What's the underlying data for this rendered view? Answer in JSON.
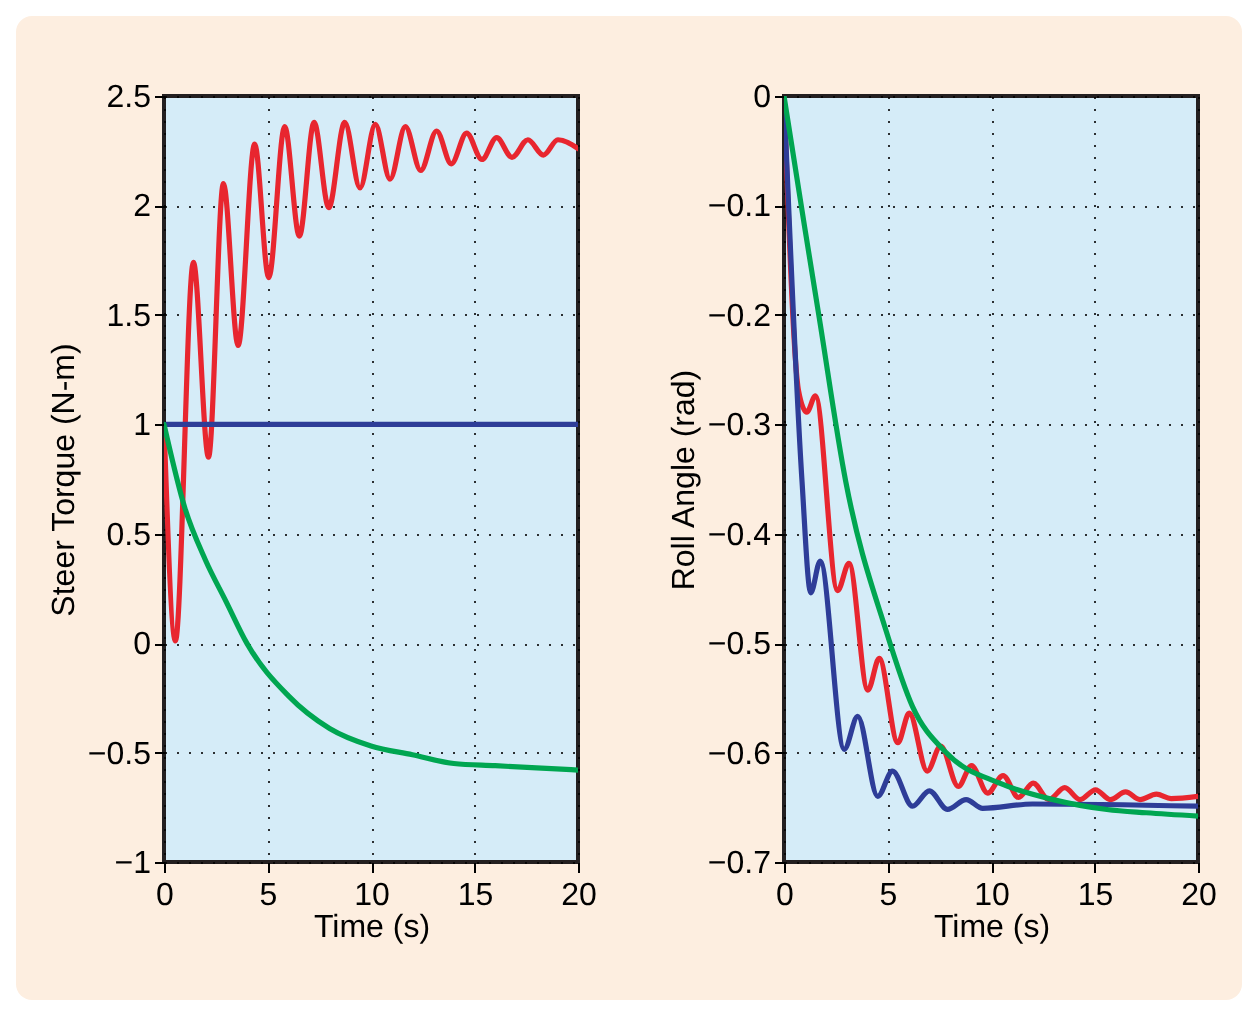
{
  "chart_data": [
    {
      "type": "line",
      "xlabel": "Time (s)",
      "ylabel": "Steer Torque (N-m)",
      "xlim": [
        0,
        20
      ],
      "ylim": [
        -1,
        2.5
      ],
      "xticks": [
        0,
        5,
        10,
        15,
        20
      ],
      "yticks": [
        -1,
        -0.5,
        0,
        0.5,
        1,
        1.5,
        2,
        2.5
      ],
      "grid": true,
      "series": [
        {
          "color": "#e8262f",
          "x": [
            0,
            0.55,
            1.42,
            2.15,
            2.87,
            3.58,
            4.38,
            5.06,
            5.83,
            6.54,
            7.25,
            7.96,
            8.73,
            9.47,
            10.21,
            10.92,
            11.66,
            12.4,
            13.17,
            13.88,
            14.62,
            15.36,
            16.07,
            16.81,
            17.58,
            18.33,
            19.03,
            20
          ],
          "values": [
            1,
            0.01,
            1.74,
            0.85,
            2.1,
            1.36,
            2.28,
            1.67,
            2.36,
            1.86,
            2.38,
            1.99,
            2.38,
            2.08,
            2.37,
            2.12,
            2.36,
            2.16,
            2.34,
            2.19,
            2.33,
            2.21,
            2.31,
            2.22,
            2.3,
            2.23,
            2.3,
            2.26
          ]
        },
        {
          "color": "#2e3d98",
          "x": [
            0,
            20
          ],
          "values": [
            1,
            1
          ]
        },
        {
          "color": "#00a651",
          "x": [
            0,
            1,
            2,
            3,
            4,
            6,
            8,
            10,
            12,
            14,
            16,
            18,
            20
          ],
          "values": [
            1,
            0.62,
            0.38,
            0.19,
            0,
            -0.24,
            -0.39,
            -0.47,
            -0.51,
            -0.55,
            -0.56,
            -0.57,
            -0.58
          ]
        }
      ]
    },
    {
      "type": "line",
      "xlabel": "Time (s)",
      "ylabel": "Roll Angle (rad)",
      "xlim": [
        0,
        20
      ],
      "ylim": [
        -0.7,
        0
      ],
      "xticks": [
        0,
        5,
        10,
        15,
        20
      ],
      "yticks": [
        -0.7,
        -0.6,
        -0.5,
        -0.4,
        -0.3,
        -0.2,
        -0.1,
        0
      ],
      "grid": true,
      "series": [
        {
          "color": "#e8262f",
          "x": [
            0,
            0.71,
            1.1,
            1.52,
            2.59,
            3.14,
            4.05,
            4.6,
            5.5,
            6.05,
            6.92,
            7.57,
            8.42,
            9.06,
            9.84,
            10.58,
            11.33,
            12.04,
            12.79,
            13.56,
            14.3,
            15.05,
            15.76,
            16.5,
            17.2,
            17.99,
            18.7,
            20
          ],
          "values": [
            0,
            -0.27,
            -0.289,
            -0.274,
            -0.452,
            -0.427,
            -0.543,
            -0.514,
            -0.591,
            -0.564,
            -0.617,
            -0.594,
            -0.631,
            -0.612,
            -0.637,
            -0.621,
            -0.641,
            -0.628,
            -0.643,
            -0.632,
            -0.643,
            -0.634,
            -0.643,
            -0.636,
            -0.643,
            -0.638,
            -0.642,
            -0.64
          ]
        },
        {
          "color": "#2e3d98",
          "x": [
            0,
            0.87,
            1.29,
            1.75,
            2.91,
            3.56,
            4.53,
            5.24,
            6.21,
            7.02,
            7.9,
            8.8,
            9.6,
            12,
            20
          ],
          "values": [
            0,
            -0.352,
            -0.454,
            -0.425,
            -0.597,
            -0.567,
            -0.64,
            -0.617,
            -0.649,
            -0.635,
            -0.652,
            -0.643,
            -0.651,
            -0.647,
            -0.649
          ]
        },
        {
          "color": "#00a651",
          "x": [
            0,
            1,
            1.68,
            2.98,
            4.92,
            6.21,
            7.83,
            10.42,
            13,
            15.6,
            17.5,
            20
          ],
          "values": [
            0,
            -0.12,
            -0.2,
            -0.352,
            -0.488,
            -0.558,
            -0.6,
            -0.628,
            -0.643,
            -0.652,
            -0.655,
            -0.658
          ]
        }
      ]
    }
  ]
}
